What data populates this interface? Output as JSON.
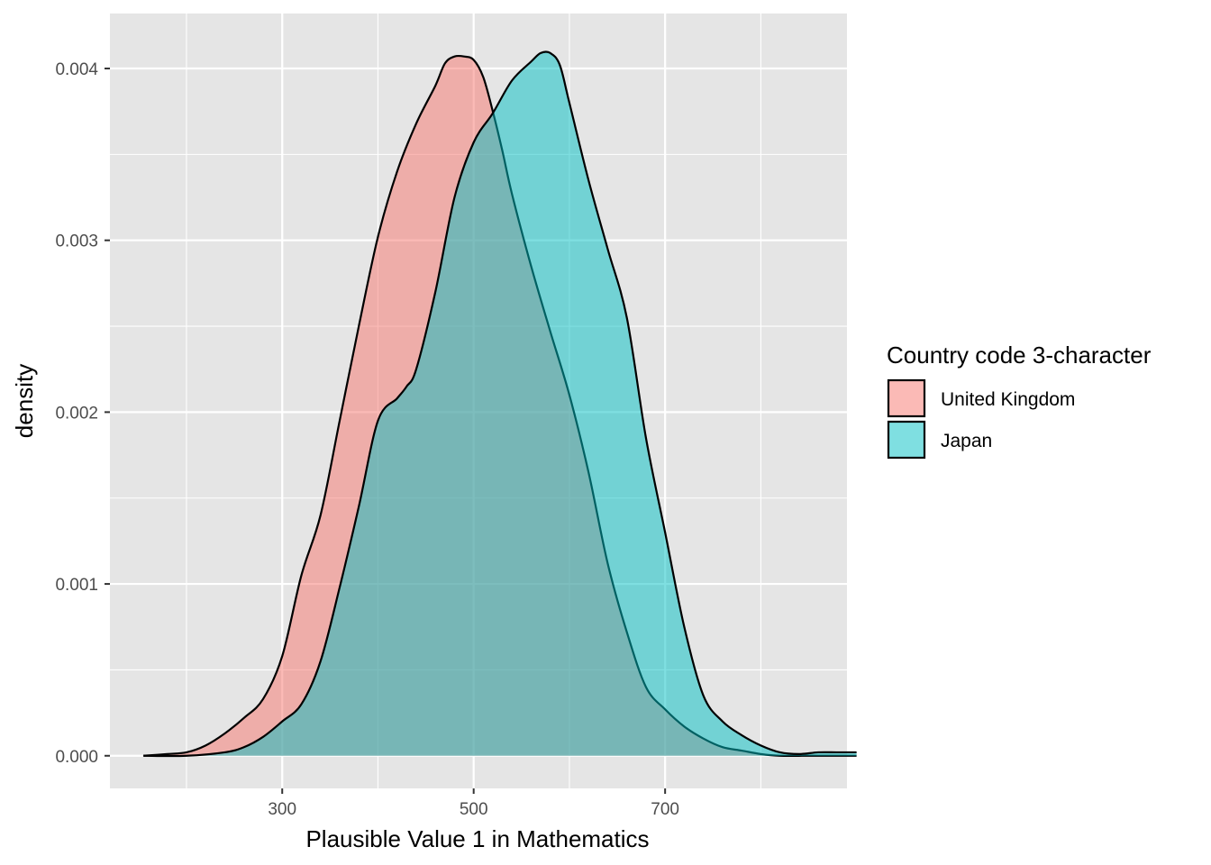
{
  "chart_data": {
    "type": "area",
    "subtype": "density",
    "title": "",
    "xlabel": "Plausible Value 1 in Mathematics",
    "ylabel": "density",
    "xlim": [
      120,
      890
    ],
    "ylim": [
      -0.00019,
      0.00432
    ],
    "x_ticks": [
      300,
      500,
      700
    ],
    "x_tick_labels": [
      "300",
      "500",
      "700"
    ],
    "y_ticks": [
      0.0,
      0.001,
      0.002,
      0.003,
      0.004
    ],
    "y_tick_labels": [
      "0.000",
      "0.001",
      "0.002",
      "0.003",
      "0.004"
    ],
    "grid": true,
    "background": "#e5e5e5",
    "legend": {
      "title": "Country code 3-character",
      "position": "right"
    },
    "series": [
      {
        "name": "United Kingdom",
        "color": "#f8766d",
        "x": [
          155,
          180,
          200,
          220,
          240,
          260,
          280,
          300,
          320,
          340,
          360,
          380,
          400,
          420,
          440,
          460,
          470,
          480,
          490,
          500,
          510,
          520,
          530,
          540,
          560,
          580,
          600,
          620,
          640,
          660,
          680,
          700,
          720,
          740,
          760,
          780,
          800,
          820,
          850,
          880,
          900
        ],
        "values": [
          0.0,
          1e-05,
          2e-05,
          6e-05,
          0.00013,
          0.00022,
          0.00033,
          0.00058,
          0.00105,
          0.0014,
          0.00195,
          0.0025,
          0.00302,
          0.0034,
          0.00368,
          0.0039,
          0.00403,
          0.00407,
          0.00407,
          0.00405,
          0.00395,
          0.00375,
          0.00352,
          0.00327,
          0.00285,
          0.00247,
          0.0021,
          0.00165,
          0.00112,
          0.00072,
          0.0004,
          0.00027,
          0.00017,
          0.0001,
          5e-05,
          3e-05,
          1e-05,
          0.0,
          0.0,
          0.0,
          0.0
        ]
      },
      {
        "name": "Japan",
        "color": "#00bfc4",
        "x": [
          155,
          200,
          240,
          260,
          280,
          300,
          320,
          340,
          360,
          380,
          400,
          420,
          430,
          440,
          460,
          480,
          500,
          520,
          540,
          560,
          570,
          580,
          590,
          600,
          620,
          640,
          660,
          680,
          700,
          720,
          740,
          760,
          780,
          800,
          820,
          840,
          860,
          880,
          900
        ],
        "values": [
          0.0,
          0.0,
          2e-05,
          5e-05,
          0.00011,
          0.0002,
          0.0003,
          0.00055,
          0.00098,
          0.00145,
          0.00195,
          0.00208,
          0.00215,
          0.00225,
          0.0027,
          0.00325,
          0.00357,
          0.00374,
          0.00393,
          0.00404,
          0.00409,
          0.00409,
          0.00402,
          0.0038,
          0.00335,
          0.00295,
          0.00255,
          0.00185,
          0.0013,
          0.00075,
          0.00035,
          0.0002,
          0.00012,
          6e-05,
          2e-05,
          1e-05,
          2e-05,
          2e-05,
          2e-05
        ]
      }
    ]
  }
}
